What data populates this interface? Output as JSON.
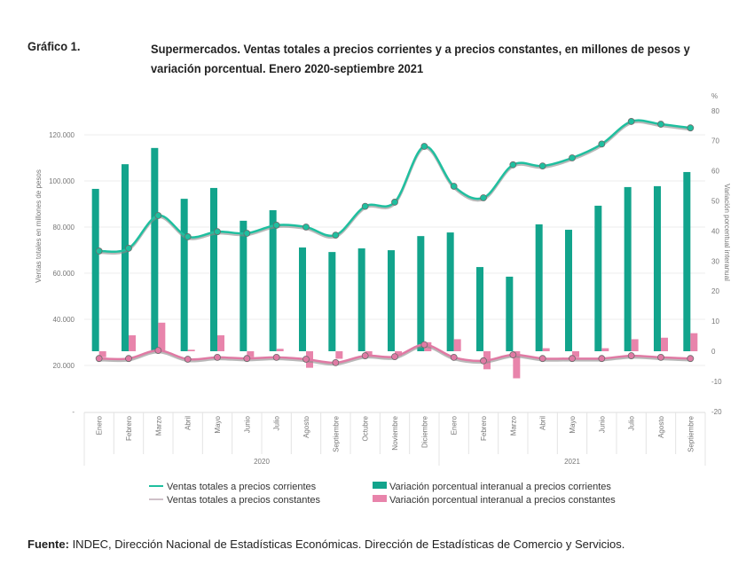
{
  "header": {
    "label": "Gráfico 1.",
    "title": "Supermercados. Ventas totales a precios corrientes y a precios constantes, en millones de pesos y variación porcentual. Enero 2020-septiembre 2021"
  },
  "source": {
    "label": "Fuente:",
    "text": " INDEC, Dirección Nacional de Estadísticas Económicas. Dirección de Estadísticas de Comercio y Servicios."
  },
  "chart_data": {
    "type": "bar+line",
    "categories": [
      "Enero",
      "Febrero",
      "Marzo",
      "Abril",
      "Mayo",
      "Junio",
      "Julio",
      "Agosto",
      "Septiembre",
      "Octubre",
      "Noviembre",
      "Diciembre",
      "Enero",
      "Febrero",
      "Marzo",
      "Abril",
      "Mayo",
      "Junio",
      "Julio",
      "Agosto",
      "Septiembre"
    ],
    "years": [
      {
        "label": "2020",
        "months": 12
      },
      {
        "label": "2021",
        "months": 9
      }
    ],
    "ylabel_left": "Ventas totales en millones de pesos",
    "ylabel_right": "Variación porcentual interanual",
    "right_unit": "%",
    "ylim_left": [
      0,
      130000
    ],
    "yticks_left": [
      "-",
      "20.000",
      "40.000",
      "60.000",
      "80.000",
      "100.000",
      "120.000"
    ],
    "ylim_right": [
      -20,
      80
    ],
    "yticks_right": [
      "-20",
      "-10",
      "0",
      "10",
      "20",
      "30",
      "40",
      "50",
      "60",
      "70",
      "80"
    ],
    "grid": true,
    "legend_position": "bottom",
    "series": [
      {
        "name": "Ventas totales a precios corrientes",
        "kind": "line",
        "axis": "left",
        "color": "#1fbf9f",
        "values": [
          69600,
          70800,
          85000,
          75800,
          78000,
          77300,
          80800,
          80000,
          76500,
          89000,
          90800,
          115000,
          97700,
          92700,
          107000,
          106500,
          110000,
          116000,
          125800,
          124600,
          123000
        ]
      },
      {
        "name": "Ventas totales a precios constantes",
        "kind": "line",
        "axis": "left",
        "color": "#e07aa4",
        "values": [
          23000,
          23000,
          26500,
          22700,
          23500,
          23000,
          23500,
          22700,
          21200,
          24200,
          23800,
          29000,
          23500,
          22000,
          24600,
          23000,
          23000,
          23000,
          24200,
          23500,
          23000
        ]
      },
      {
        "name": "Variación porcentual interanual a precios corrientes",
        "kind": "bar",
        "axis": "right",
        "color": "#12a48c",
        "values": [
          54.0,
          62.2,
          67.6,
          50.7,
          54.3,
          43.4,
          46.9,
          34.5,
          33.0,
          34.2,
          33.6,
          38.3,
          39.5,
          28.0,
          24.8,
          42.2,
          40.4,
          48.4,
          54.6,
          54.9,
          59.6
        ]
      },
      {
        "name": "Variación porcentual interanual a precios constantes",
        "kind": "bar",
        "axis": "right",
        "color": "#e884ab",
        "values": [
          -2,
          5.3,
          9.5,
          0.5,
          5.3,
          -2,
          0.8,
          -5.5,
          -2.5,
          -1.5,
          -1.5,
          3,
          4,
          -6,
          -9,
          1,
          -2,
          1,
          4,
          4.5,
          6
        ]
      }
    ]
  }
}
